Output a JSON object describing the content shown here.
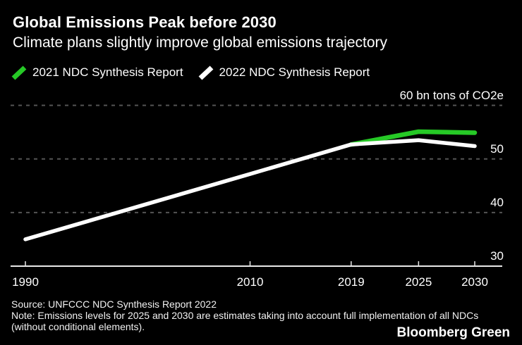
{
  "header": {
    "title": "Global Emissions Peak before 2030",
    "subtitle": "Climate plans slightly improve global emissions trajectory"
  },
  "legend": [
    {
      "label": "2021 NDC Synthesis Report",
      "color": "#26c926",
      "marker": "slash-icon"
    },
    {
      "label": "2022 NDC Synthesis Report",
      "color": "#ffffff",
      "marker": "slash-icon"
    }
  ],
  "chart_data": {
    "type": "line",
    "title": "Global Emissions Peak before 2030",
    "subtitle": "Climate plans slightly improve global emissions trajectory",
    "unit_label": "60 bn tons of CO2e",
    "x": {
      "ticks": [
        1990,
        2010,
        2019,
        2025,
        2030
      ],
      "range": [
        1990,
        2030
      ]
    },
    "y": {
      "range": [
        30,
        60
      ],
      "grid": "dashed-horizontal",
      "ticks": [
        {
          "value": 60,
          "label": "60 bn tons of CO2e"
        },
        {
          "value": 50,
          "label": "50"
        },
        {
          "value": 40,
          "label": "40"
        },
        {
          "value": 30,
          "label": "30"
        }
      ]
    },
    "series": [
      {
        "name": "2021 NDC Synthesis Report",
        "color": "#26c926",
        "points": [
          [
            2019,
            52.7
          ],
          [
            2025,
            55.1
          ],
          [
            2030,
            54.9
          ]
        ]
      },
      {
        "name": "2022 NDC Synthesis Report",
        "color": "#ffffff",
        "points": [
          [
            1990,
            35.0
          ],
          [
            2010,
            47.2
          ],
          [
            2019,
            52.7
          ],
          [
            2025,
            53.5
          ],
          [
            2030,
            52.4
          ]
        ]
      }
    ],
    "legend_position": "top"
  },
  "footer": {
    "source": "Source: UNFCCC NDC Synthesis Report 2022",
    "note": "Note: Emissions levels for 2025 and 2030 are estimates taking into account full implementation of all NDCs (without conditional elements).",
    "brand": "Bloomberg Green"
  },
  "colors": {
    "background": "#000000",
    "text": "#ffffff",
    "grid": "#545454",
    "axis": "#e8e8e8",
    "green": "#26c926",
    "footnote": "#f2f2f2"
  }
}
